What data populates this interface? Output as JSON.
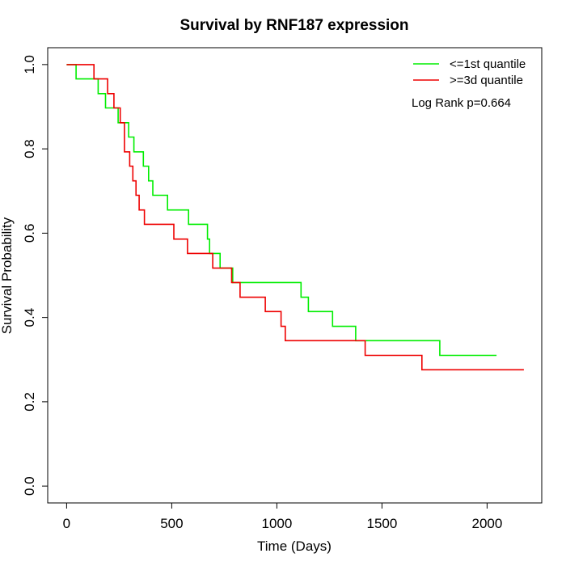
{
  "chart_data": {
    "type": "line",
    "title": "Survival by RNF187 expression",
    "xlabel": "Time (Days)",
    "ylabel": "Survival Probability",
    "xlim": [
      -90,
      2260
    ],
    "ylim": [
      -0.04,
      1.04
    ],
    "xticks": [
      0,
      500,
      1000,
      1500,
      2000
    ],
    "yticks": [
      0.0,
      0.2,
      0.4,
      0.6,
      0.8,
      1.0
    ],
    "xtick_labels": [
      "0",
      "500",
      "1000",
      "1500",
      "2000"
    ],
    "ytick_labels": [
      "0.0",
      "0.2",
      "0.4",
      "0.6",
      "0.8",
      "1.0"
    ],
    "grid": false,
    "legend_position": "top-right",
    "annotation": "Log Rank p=0.664",
    "series": [
      {
        "name": "<=1st quantile",
        "color": "#00ee00",
        "step": true,
        "points": [
          [
            0,
            1.0
          ],
          [
            45,
            0.966
          ],
          [
            150,
            0.931
          ],
          [
            185,
            0.897
          ],
          [
            245,
            0.862
          ],
          [
            295,
            0.828
          ],
          [
            320,
            0.793
          ],
          [
            365,
            0.759
          ],
          [
            390,
            0.724
          ],
          [
            410,
            0.69
          ],
          [
            480,
            0.655
          ],
          [
            580,
            0.621
          ],
          [
            670,
            0.586
          ],
          [
            680,
            0.552
          ],
          [
            730,
            0.517
          ],
          [
            790,
            0.483
          ],
          [
            1115,
            0.448
          ],
          [
            1150,
            0.414
          ],
          [
            1265,
            0.379
          ],
          [
            1375,
            0.345
          ],
          [
            1775,
            0.31
          ],
          [
            2045,
            0.31
          ]
        ]
      },
      {
        "name": ">=3d quantile",
        "color": "#ee0000",
        "step": true,
        "points": [
          [
            0,
            1.0
          ],
          [
            130,
            0.966
          ],
          [
            195,
            0.931
          ],
          [
            225,
            0.897
          ],
          [
            255,
            0.862
          ],
          [
            275,
            0.793
          ],
          [
            300,
            0.759
          ],
          [
            315,
            0.724
          ],
          [
            330,
            0.69
          ],
          [
            345,
            0.655
          ],
          [
            370,
            0.621
          ],
          [
            510,
            0.586
          ],
          [
            575,
            0.552
          ],
          [
            695,
            0.517
          ],
          [
            785,
            0.483
          ],
          [
            825,
            0.448
          ],
          [
            945,
            0.414
          ],
          [
            1020,
            0.379
          ],
          [
            1040,
            0.345
          ],
          [
            1420,
            0.31
          ],
          [
            1690,
            0.276
          ],
          [
            2175,
            0.276
          ]
        ]
      }
    ]
  }
}
